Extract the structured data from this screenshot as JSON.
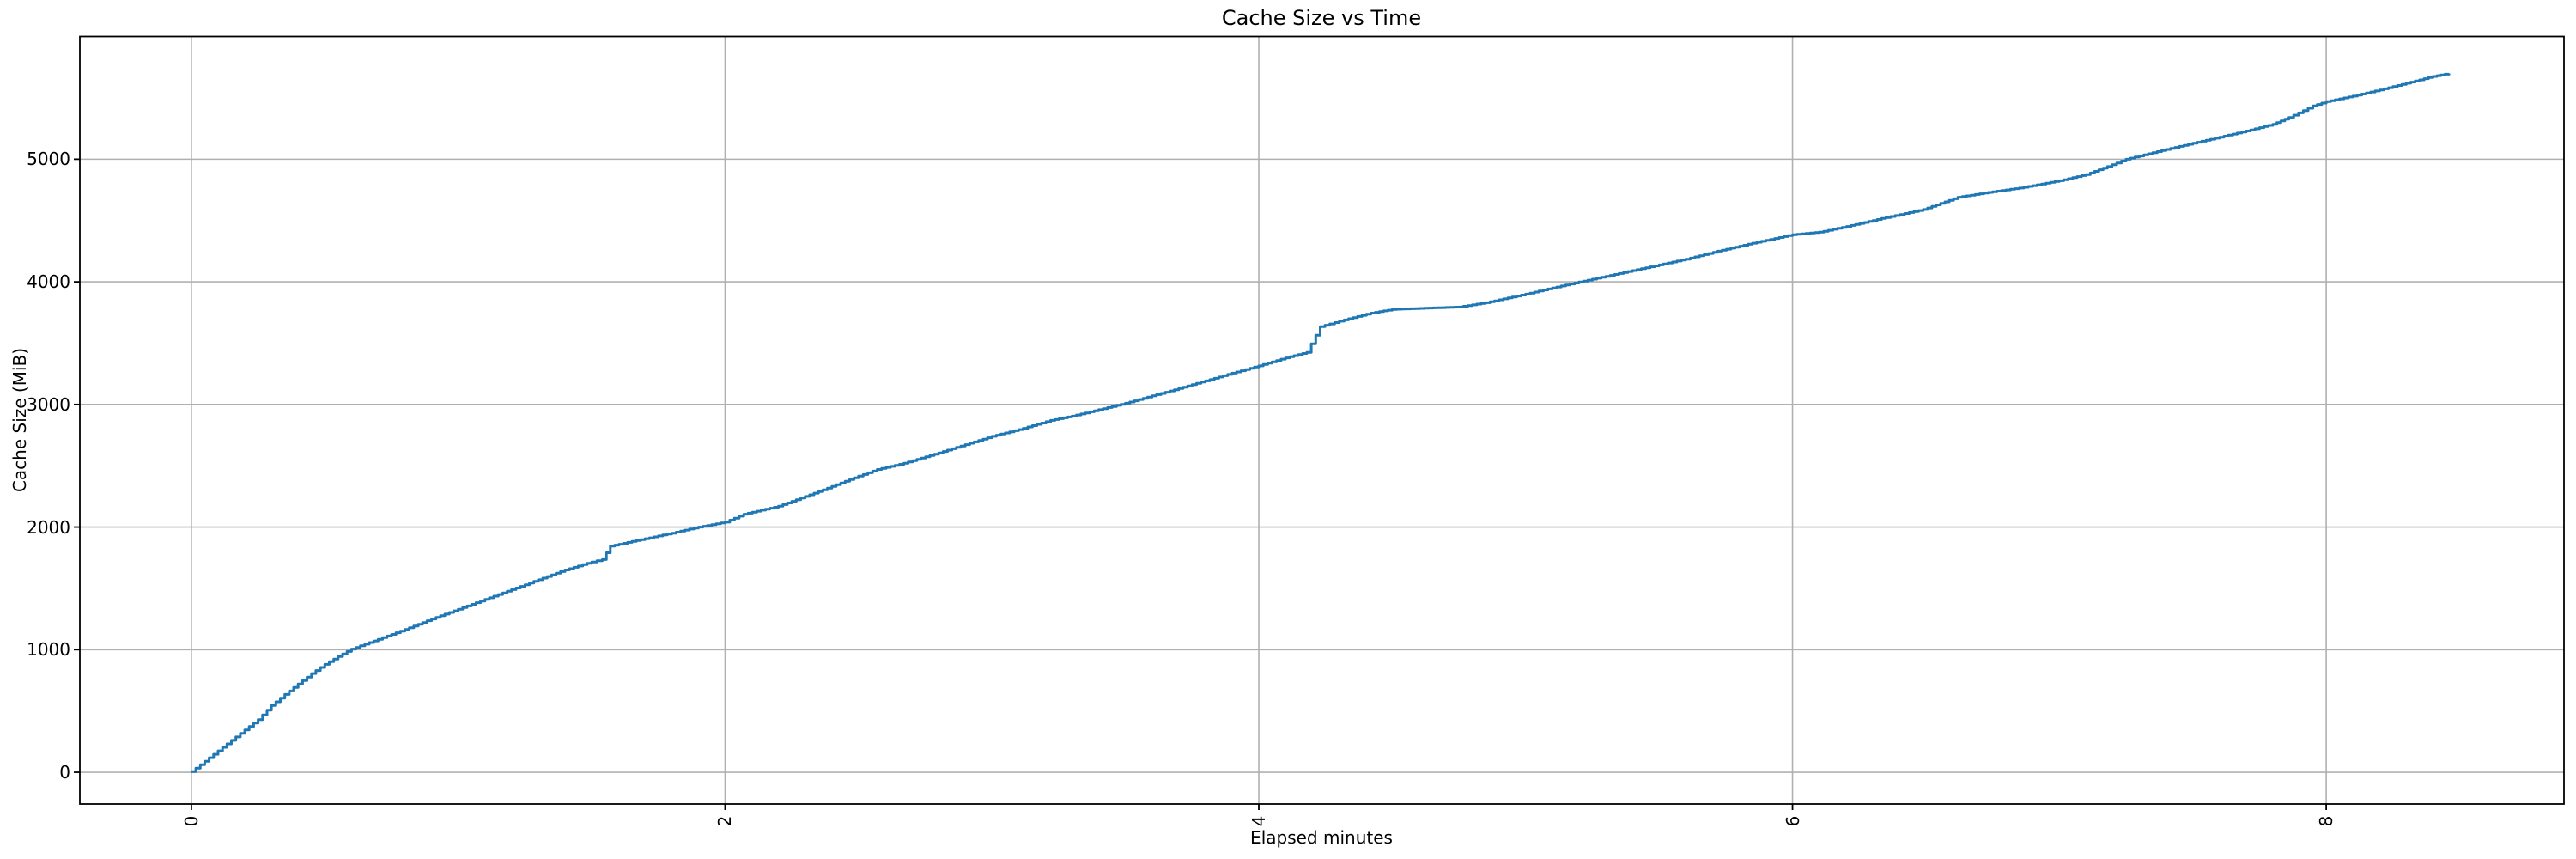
{
  "chart_data": {
    "type": "line",
    "title": "Cache Size vs Time",
    "xlabel": "Elapsed minutes",
    "ylabel": "Cache Size (MiB)",
    "x_ticks": [
      0,
      2,
      4,
      6,
      8
    ],
    "y_ticks": [
      0,
      1000,
      2000,
      3000,
      4000,
      5000
    ],
    "xlim": [
      -0.418,
      8.891
    ],
    "ylim": [
      -259,
      6001
    ],
    "grid": true,
    "legend": "none",
    "line_color": "#1f77b4",
    "grid_color": "#b0b0b0",
    "spine_color": "#000000",
    "step_interval_minutes": 0.0167,
    "series_name": "cache-size",
    "points": [
      [
        0.0,
        5
      ],
      [
        0.05,
        90
      ],
      [
        0.1,
        175
      ],
      [
        0.15,
        260
      ],
      [
        0.2,
        345
      ],
      [
        0.25,
        430
      ],
      [
        0.3,
        545
      ],
      [
        0.35,
        635
      ],
      [
        0.4,
        720
      ],
      [
        0.45,
        805
      ],
      [
        0.5,
        880
      ],
      [
        0.55,
        945
      ],
      [
        0.6,
        1005
      ],
      [
        0.7,
        1085
      ],
      [
        0.8,
        1165
      ],
      [
        0.9,
        1250
      ],
      [
        1.0,
        1330
      ],
      [
        1.1,
        1410
      ],
      [
        1.2,
        1490
      ],
      [
        1.3,
        1570
      ],
      [
        1.4,
        1650
      ],
      [
        1.5,
        1715
      ],
      [
        1.54,
        1735
      ],
      [
        1.57,
        1845
      ],
      [
        1.7,
        1905
      ],
      [
        1.8,
        1950
      ],
      [
        1.9,
        2000
      ],
      [
        2.0,
        2040
      ],
      [
        2.07,
        2105
      ],
      [
        2.2,
        2170
      ],
      [
        2.35,
        2290
      ],
      [
        2.5,
        2415
      ],
      [
        2.57,
        2470
      ],
      [
        2.67,
        2520
      ],
      [
        2.8,
        2605
      ],
      [
        3.0,
        2740
      ],
      [
        3.1,
        2795
      ],
      [
        3.22,
        2870
      ],
      [
        3.3,
        2905
      ],
      [
        3.5,
        3010
      ],
      [
        3.7,
        3130
      ],
      [
        3.9,
        3255
      ],
      [
        4.0,
        3315
      ],
      [
        4.1,
        3380
      ],
      [
        4.18,
        3425
      ],
      [
        4.23,
        3635
      ],
      [
        4.32,
        3690
      ],
      [
        4.42,
        3745
      ],
      [
        4.5,
        3775
      ],
      [
        4.62,
        3785
      ],
      [
        4.75,
        3795
      ],
      [
        4.85,
        3830
      ],
      [
        5.0,
        3900
      ],
      [
        5.15,
        3975
      ],
      [
        5.3,
        4045
      ],
      [
        5.45,
        4115
      ],
      [
        5.6,
        4185
      ],
      [
        5.72,
        4250
      ],
      [
        5.85,
        4315
      ],
      [
        6.0,
        4385
      ],
      [
        6.1,
        4405
      ],
      [
        6.22,
        4460
      ],
      [
        6.35,
        4525
      ],
      [
        6.49,
        4590
      ],
      [
        6.62,
        4690
      ],
      [
        6.75,
        4735
      ],
      [
        6.85,
        4765
      ],
      [
        7.0,
        4825
      ],
      [
        7.1,
        4875
      ],
      [
        7.18,
        4940
      ],
      [
        7.25,
        5000
      ],
      [
        7.4,
        5080
      ],
      [
        7.55,
        5155
      ],
      [
        7.7,
        5230
      ],
      [
        7.8,
        5285
      ],
      [
        7.86,
        5340
      ],
      [
        7.95,
        5435
      ],
      [
        8.0,
        5470
      ],
      [
        8.1,
        5515
      ],
      [
        8.2,
        5565
      ],
      [
        8.3,
        5620
      ],
      [
        8.4,
        5675
      ],
      [
        8.46,
        5700
      ]
    ]
  }
}
